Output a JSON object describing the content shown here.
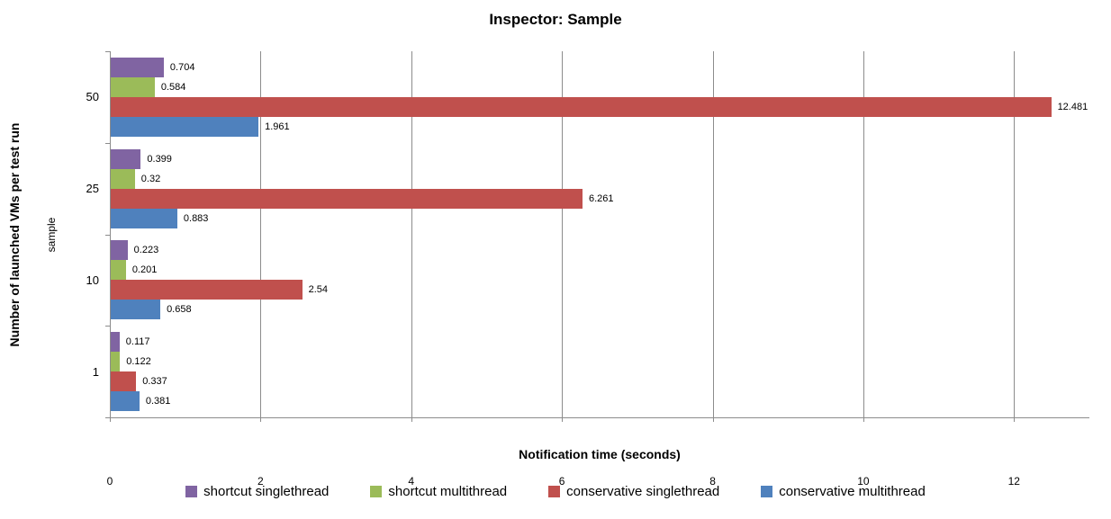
{
  "title": "Inspector: Sample",
  "chart_data": {
    "type": "bar",
    "orientation": "horizontal",
    "title": "Inspector: Sample",
    "xlabel": "Notification time (seconds)",
    "ylabel": "Number of launched VMs per test run",
    "ylabel_secondary": "sample",
    "categories": [
      "50",
      "25",
      "10",
      "1"
    ],
    "series": [
      {
        "name": "shortcut singlethread",
        "color": "#8064A2",
        "values": [
          0.704,
          0.399,
          0.223,
          0.117
        ]
      },
      {
        "name": "shortcut multithread",
        "color": "#9BBB59",
        "values": [
          0.584,
          0.32,
          0.201,
          0.122
        ]
      },
      {
        "name": "conservative singlethread",
        "color": "#C0504D",
        "values": [
          12.481,
          6.261,
          2.54,
          0.337
        ]
      },
      {
        "name": "conservative multithread",
        "color": "#4F81BD",
        "values": [
          1.961,
          0.883,
          0.658,
          0.381
        ]
      }
    ],
    "xlim": [
      0,
      13
    ],
    "xticks": [
      0,
      2,
      4,
      6,
      8,
      10,
      12
    ],
    "grid": "vertical-only",
    "grid_color": "#8C8C8C",
    "legend_position": "bottom",
    "data_labels": true
  }
}
